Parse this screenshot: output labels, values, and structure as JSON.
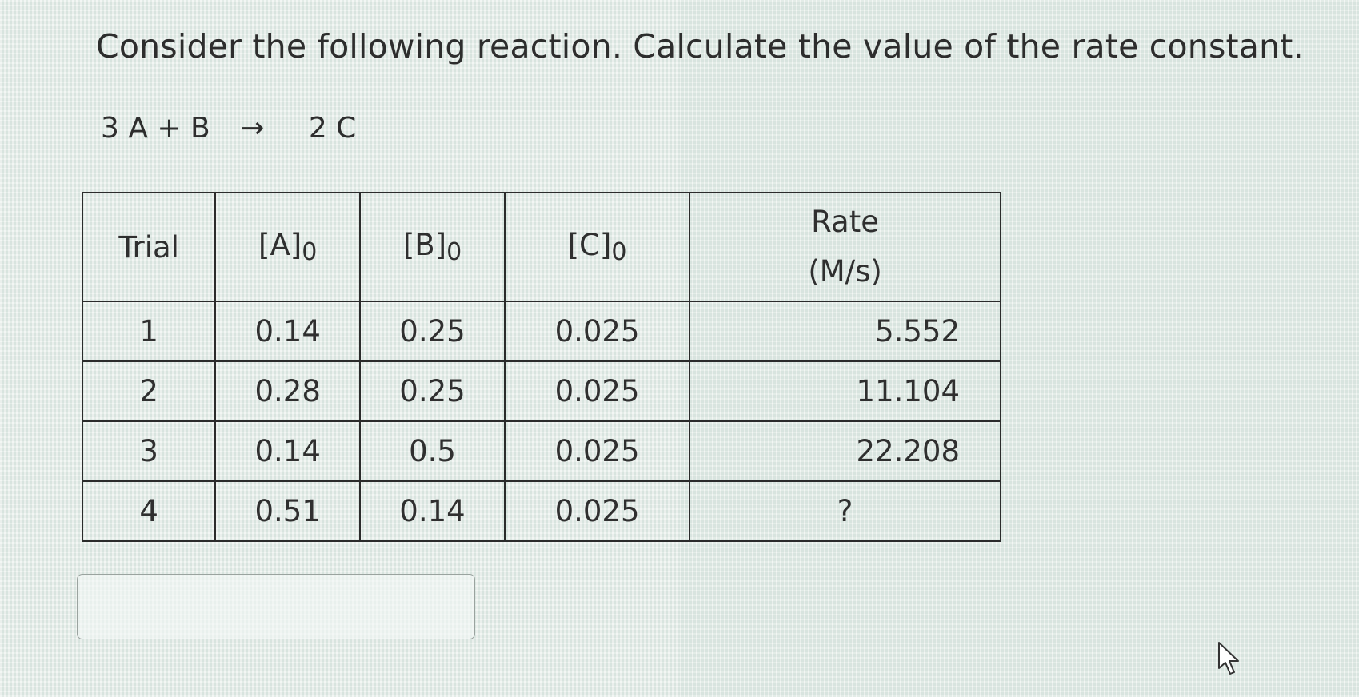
{
  "question": {
    "text": "Consider the following reaction. Calculate the value of the rate constant."
  },
  "equation": {
    "left": "3 A + B",
    "arrow": "→",
    "right": "2 C"
  },
  "table": {
    "headers": {
      "trial": "Trial",
      "a": "[A]",
      "a_sub": "0",
      "b": "[B]",
      "b_sub": "0",
      "c": "[C]",
      "c_sub": "0",
      "rate_line1": "Rate",
      "rate_line2": "(M/s)"
    },
    "rows": [
      {
        "trial": "1",
        "a": "0.14",
        "b": "0.25",
        "c": "0.025",
        "rate": "5.552"
      },
      {
        "trial": "2",
        "a": "0.28",
        "b": "0.25",
        "c": "0.025",
        "rate": "11.104"
      },
      {
        "trial": "3",
        "a": "0.14",
        "b": "0.5",
        "c": "0.025",
        "rate": "22.208"
      },
      {
        "trial": "4",
        "a": "0.51",
        "b": "0.14",
        "c": "0.025",
        "rate": "?"
      }
    ]
  },
  "answer": {
    "value": "",
    "placeholder": ""
  },
  "cursor_icon": "mouse-pointer-icon"
}
